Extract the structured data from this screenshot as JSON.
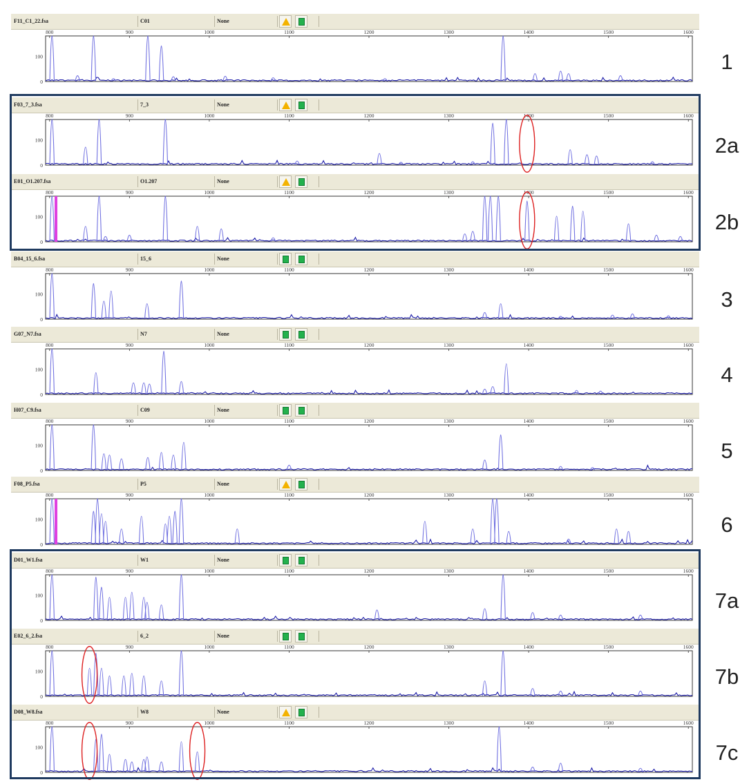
{
  "panels": [
    {
      "label": "1",
      "file": "F11_C1_22.fsa",
      "sample": "C01",
      "status": "None",
      "q1": "warn",
      "q2": "ok"
    },
    {
      "label": "2a",
      "file": "F03_7_3.fsa",
      "sample": "7_3",
      "status": "None",
      "q1": "warn",
      "q2": "ok"
    },
    {
      "label": "2b",
      "file": "E01_O1.207.fsa",
      "sample": "O1.207",
      "status": "None",
      "q1": "warn",
      "q2": "ok"
    },
    {
      "label": "3",
      "file": "B04_15_6.fsa",
      "sample": "15_6",
      "status": "None",
      "q1": "ok",
      "q2": "ok"
    },
    {
      "label": "4",
      "file": "G07_N7.fsa",
      "sample": "N7",
      "status": "None",
      "q1": "ok",
      "q2": "ok"
    },
    {
      "label": "5",
      "file": "H07_C9.fsa",
      "sample": "C09",
      "status": "None",
      "q1": "ok",
      "q2": "ok"
    },
    {
      "label": "6",
      "file": "F08_P5.fsa",
      "sample": "P5",
      "status": "None",
      "q1": "warn",
      "q2": "ok"
    },
    {
      "label": "7a",
      "file": "D01_W1.fsa",
      "sample": "W1",
      "status": "None",
      "q1": "ok",
      "q2": "ok"
    },
    {
      "label": "7b",
      "file": "E02_6_2.fsa",
      "sample": "6_2",
      "status": "None",
      "q1": "ok",
      "q2": "ok"
    },
    {
      "label": "7c",
      "file": "D08_W8.fsa",
      "sample": "W8",
      "status": "None",
      "q1": "warn",
      "q2": "ok"
    }
  ],
  "chart_data": {
    "type": "line",
    "x_ticks": [
      800,
      900,
      1000,
      1100,
      1200,
      1300,
      1400,
      1500,
      1600
    ],
    "y_ticks": [
      0,
      100
    ],
    "xlim": [
      795,
      1605
    ],
    "ylim": [
      0,
      180
    ],
    "colors": {
      "trace": "#1a1aa8",
      "peak": "#6e6ee0",
      "marker": "#e040e0",
      "highlight": "#dd1f1f",
      "frame": "#1f3a5f"
    },
    "series": [
      {
        "label": "1",
        "peaks": [
          [
            803,
            180
          ],
          [
            855,
            180
          ],
          [
            923,
            180
          ],
          [
            940,
            140
          ],
          [
            1368,
            180
          ],
          [
            1408,
            30
          ],
          [
            1440,
            40
          ],
          [
            1450,
            30
          ],
          [
            1515,
            22
          ],
          [
            835,
            22
          ],
          [
            880,
            10
          ],
          [
            955,
            18
          ],
          [
            1020,
            20
          ],
          [
            1080,
            14
          ],
          [
            1220,
            10
          ]
        ],
        "highlights": []
      },
      {
        "label": "2a",
        "peaks": [
          [
            803,
            180
          ],
          [
            845,
            70
          ],
          [
            862,
            180
          ],
          [
            945,
            180
          ],
          [
            1213,
            45
          ],
          [
            1355,
            165
          ],
          [
            1372,
            180
          ],
          [
            1452,
            60
          ],
          [
            1473,
            40
          ],
          [
            1485,
            35
          ],
          [
            1110,
            15
          ],
          [
            1240,
            10
          ],
          [
            1330,
            12
          ],
          [
            1555,
            12
          ]
        ],
        "highlights": [
          [
            1398,
            55
          ]
        ]
      },
      {
        "label": "2b",
        "peaks": [
          [
            803,
            180
          ],
          [
            845,
            60
          ],
          [
            862,
            180
          ],
          [
            945,
            180
          ],
          [
            985,
            60
          ],
          [
            1015,
            50
          ],
          [
            1345,
            180
          ],
          [
            1352,
            180
          ],
          [
            1362,
            180
          ],
          [
            1398,
            160
          ],
          [
            1435,
            100
          ],
          [
            1455,
            140
          ],
          [
            1468,
            120
          ],
          [
            1330,
            40
          ],
          [
            1320,
            30
          ],
          [
            1525,
            70
          ],
          [
            1560,
            25
          ],
          [
            1590,
            20
          ],
          [
            870,
            20
          ],
          [
            900,
            25
          ],
          [
            1080,
            15
          ]
        ],
        "markers": [
          808
        ],
        "highlights": [
          [
            1398,
            55
          ]
        ]
      },
      {
        "label": "3",
        "peaks": [
          [
            803,
            180
          ],
          [
            855,
            140
          ],
          [
            868,
            70
          ],
          [
            877,
            110
          ],
          [
            922,
            60
          ],
          [
            965,
            150
          ],
          [
            1345,
            25
          ],
          [
            1365,
            60
          ],
          [
            1440,
            10
          ],
          [
            1505,
            15
          ],
          [
            1530,
            20
          ],
          [
            1575,
            12
          ]
        ],
        "highlights": []
      },
      {
        "label": "4",
        "peaks": [
          [
            803,
            180
          ],
          [
            858,
            85
          ],
          [
            905,
            45
          ],
          [
            918,
            45
          ],
          [
            925,
            40
          ],
          [
            943,
            170
          ],
          [
            965,
            50
          ],
          [
            1345,
            20
          ],
          [
            1355,
            30
          ],
          [
            1372,
            120
          ],
          [
            1460,
            15
          ],
          [
            1490,
            12
          ]
        ],
        "highlights": []
      },
      {
        "label": "5",
        "peaks": [
          [
            803,
            180
          ],
          [
            855,
            180
          ],
          [
            868,
            65
          ],
          [
            875,
            60
          ],
          [
            890,
            45
          ],
          [
            923,
            50
          ],
          [
            940,
            70
          ],
          [
            955,
            60
          ],
          [
            968,
            110
          ],
          [
            1100,
            20
          ],
          [
            1345,
            40
          ],
          [
            1365,
            140
          ],
          [
            1440,
            15
          ],
          [
            1480,
            10
          ]
        ],
        "highlights": []
      },
      {
        "label": "6",
        "peaks": [
          [
            803,
            180
          ],
          [
            855,
            130
          ],
          [
            860,
            180
          ],
          [
            865,
            120
          ],
          [
            870,
            90
          ],
          [
            890,
            60
          ],
          [
            915,
            110
          ],
          [
            945,
            80
          ],
          [
            950,
            110
          ],
          [
            957,
            130
          ],
          [
            965,
            180
          ],
          [
            1035,
            60
          ],
          [
            1270,
            90
          ],
          [
            1330,
            60
          ],
          [
            1355,
            180
          ],
          [
            1360,
            180
          ],
          [
            1375,
            50
          ],
          [
            1510,
            60
          ],
          [
            1525,
            50
          ],
          [
            1450,
            20
          ]
        ],
        "markers": [
          808
        ],
        "highlights": []
      },
      {
        "label": "7a",
        "peaks": [
          [
            803,
            180
          ],
          [
            858,
            170
          ],
          [
            865,
            130
          ],
          [
            875,
            90
          ],
          [
            895,
            90
          ],
          [
            903,
            110
          ],
          [
            918,
            90
          ],
          [
            922,
            70
          ],
          [
            940,
            60
          ],
          [
            965,
            180
          ],
          [
            1210,
            40
          ],
          [
            1345,
            45
          ],
          [
            1368,
            180
          ],
          [
            1405,
            30
          ],
          [
            1440,
            20
          ],
          [
            1540,
            20
          ]
        ],
        "highlights": []
      },
      {
        "label": "7b",
        "peaks": [
          [
            803,
            180
          ],
          [
            850,
            110
          ],
          [
            858,
            170
          ],
          [
            865,
            110
          ],
          [
            875,
            80
          ],
          [
            893,
            80
          ],
          [
            903,
            90
          ],
          [
            918,
            80
          ],
          [
            940,
            60
          ],
          [
            965,
            180
          ],
          [
            1345,
            60
          ],
          [
            1368,
            180
          ],
          [
            1405,
            30
          ],
          [
            1440,
            20
          ],
          [
            1540,
            20
          ]
        ],
        "highlights": [
          [
            850,
            55
          ]
        ]
      },
      {
        "label": "7c",
        "peaks": [
          [
            803,
            180
          ],
          [
            858,
            130
          ],
          [
            865,
            150
          ],
          [
            875,
            70
          ],
          [
            895,
            50
          ],
          [
            903,
            40
          ],
          [
            918,
            50
          ],
          [
            922,
            60
          ],
          [
            940,
            40
          ],
          [
            965,
            120
          ],
          [
            985,
            80
          ],
          [
            1363,
            180
          ],
          [
            1405,
            20
          ],
          [
            1440,
            35
          ],
          [
            1540,
            15
          ]
        ],
        "highlights": [
          [
            850,
            55
          ],
          [
            985,
            55
          ]
        ]
      }
    ]
  }
}
